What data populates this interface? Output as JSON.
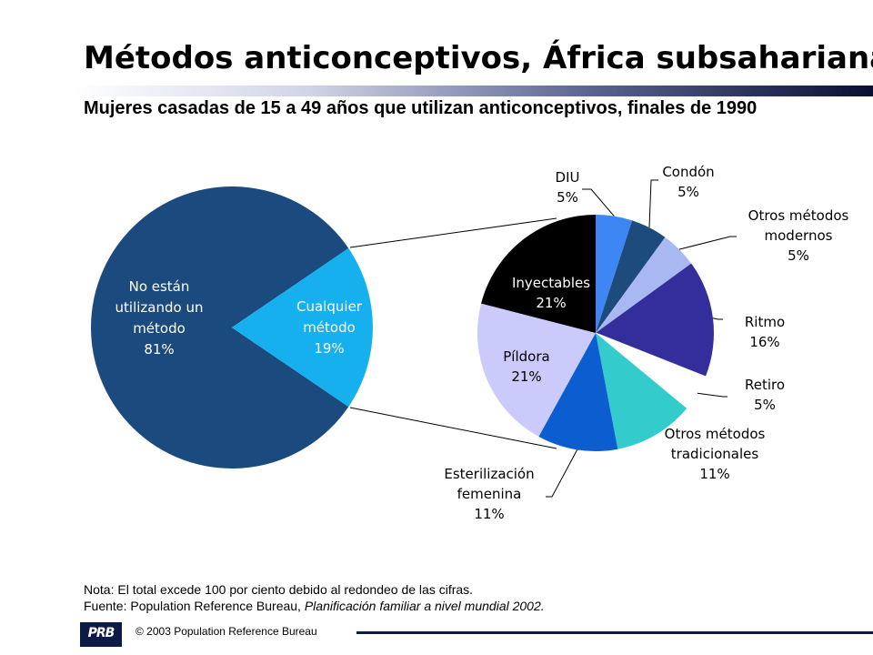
{
  "header": {
    "title": "Métodos anticonceptivos, África subsahariana",
    "subtitle": "Mujeres casadas de 15 a 49 años que utilizan anticonceptivos, finales de 1990"
  },
  "chart_data": [
    {
      "type": "pie",
      "slices": [
        {
          "lines": [
            "No están",
            "utilizando un",
            "método",
            "81%"
          ],
          "value": 81,
          "color": "#1b4a7e",
          "text_color": "#ffffff"
        },
        {
          "lines": [
            "Cualquier",
            "método",
            "19%"
          ],
          "value": 19,
          "color": "#16b0ee",
          "text_color": "#ffffff"
        }
      ]
    },
    {
      "type": "pie",
      "slices": [
        {
          "lines": [
            "DIU",
            "5%"
          ],
          "value": 5,
          "color": "#3d86f4",
          "text_color": "#000000"
        },
        {
          "lines": [
            "Condón",
            "5%"
          ],
          "value": 5,
          "color": "#1c4b7c",
          "text_color": "#000000"
        },
        {
          "lines": [
            "Otros métodos",
            "modernos",
            "5%"
          ],
          "value": 5,
          "color": "#a9b8f0",
          "text_color": "#000000"
        },
        {
          "lines": [
            "Ritmo",
            "16%"
          ],
          "value": 16,
          "color": "#332e9b",
          "text_color": "#000000"
        },
        {
          "lines": [
            "Retiro",
            "5%"
          ],
          "value": 5,
          "color": "#ffffff",
          "text_color": "#000000"
        },
        {
          "lines": [
            "Otros métodos",
            "tradicionales",
            "11%"
          ],
          "value": 11,
          "color": "#34cbcd",
          "text_color": "#000000"
        },
        {
          "lines": [
            "Esterilización",
            "femenina",
            "11%"
          ],
          "value": 11,
          "color": "#0c5ed0",
          "text_color": "#000000"
        },
        {
          "lines": [
            "Píldora",
            "21%"
          ],
          "value": 21,
          "color": "#cacbfb",
          "text_color": "#000000"
        },
        {
          "lines": [
            "Inyectables",
            "21%"
          ],
          "value": 21,
          "color": "#000000",
          "text_color": "#ffffff"
        }
      ]
    }
  ],
  "notes": {
    "nota": "Nota: El total excede 100 por ciento debido al redondeo de las cifras.",
    "fuente_prefix": "Fuente: Population Reference Bureau, ",
    "fuente_italic": "Planificación familiar a nivel mundial 2002."
  },
  "footer": {
    "logo_text": "PRB",
    "copyright": "© 2003 Population Reference Bureau"
  }
}
